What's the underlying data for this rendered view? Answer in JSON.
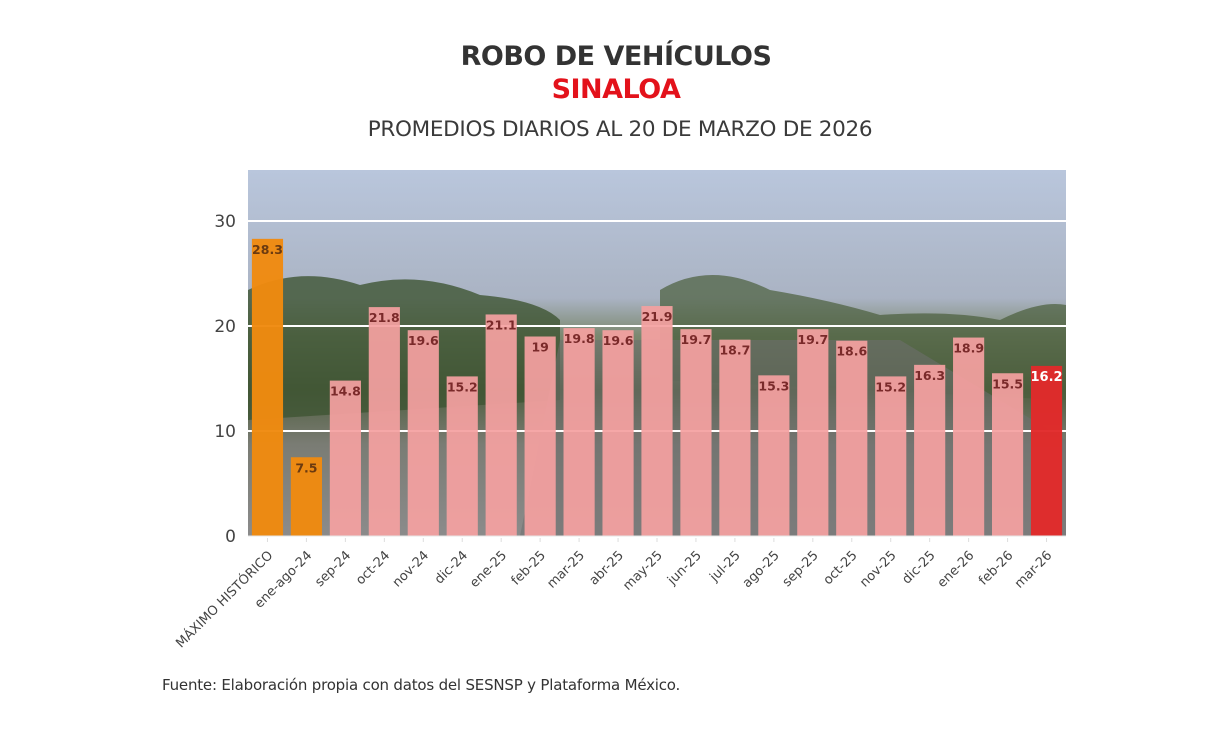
{
  "chart_data": {
    "type": "bar",
    "title": "ROBO DE VEHÍCULOS",
    "subtitle_highlight": "SINALOA",
    "subtitle": "PROMEDIOS DIARIOS AL 20 DE MARZO DE 2026",
    "xlabel": "",
    "ylabel": "",
    "ylim": [
      0,
      35
    ],
    "yticks": [
      0,
      10,
      20,
      30
    ],
    "grid": true,
    "categories": [
      "MÁXIMO HISTÓRICO",
      "ene-ago-24",
      "sep-24",
      "oct-24",
      "nov-24",
      "dic-24",
      "ene-25",
      "feb-25",
      "mar-25",
      "abr-25",
      "may-25",
      "jun-25",
      "jul-25",
      "ago-25",
      "sep-25",
      "oct-25",
      "nov-25",
      "dic-25",
      "ene-26",
      "feb-26",
      "mar-26"
    ],
    "values": [
      28.3,
      7.5,
      14.8,
      21.8,
      19.6,
      15.2,
      21.1,
      19,
      19.8,
      19.6,
      21.9,
      19.7,
      18.7,
      15.3,
      19.7,
      18.6,
      15.2,
      16.3,
      18.9,
      15.5,
      16.2
    ],
    "data_labels": [
      "28.3",
      "7.5",
      "14.8",
      "21.8",
      "19.6",
      "15.2",
      "21.1",
      "19",
      "19.8",
      "19.6",
      "21.9",
      "19.7",
      "18.7",
      "15.3",
      "19.7",
      "18.6",
      "15.2",
      "16.3",
      "18.9",
      "15.5",
      "16.2"
    ],
    "bar_groups": [
      "reference",
      "reference",
      "month",
      "month",
      "month",
      "month",
      "month",
      "month",
      "month",
      "month",
      "month",
      "month",
      "month",
      "month",
      "month",
      "month",
      "month",
      "month",
      "month",
      "month",
      "current"
    ],
    "colors": {
      "reference": "#f08a0f",
      "month": "#f4a0a0",
      "current": "#e12a2a",
      "label_dark": "#7a2a2a",
      "label_ref": "#6b3a10",
      "label_current": "#ffffff",
      "grid": "#ffffff",
      "axis_text": "#444444",
      "title": "#333333",
      "highlight": "#e3121b"
    }
  },
  "footer": {
    "source": "Fuente: Elaboración propia con datos del SESNSP y Plataforma México."
  }
}
